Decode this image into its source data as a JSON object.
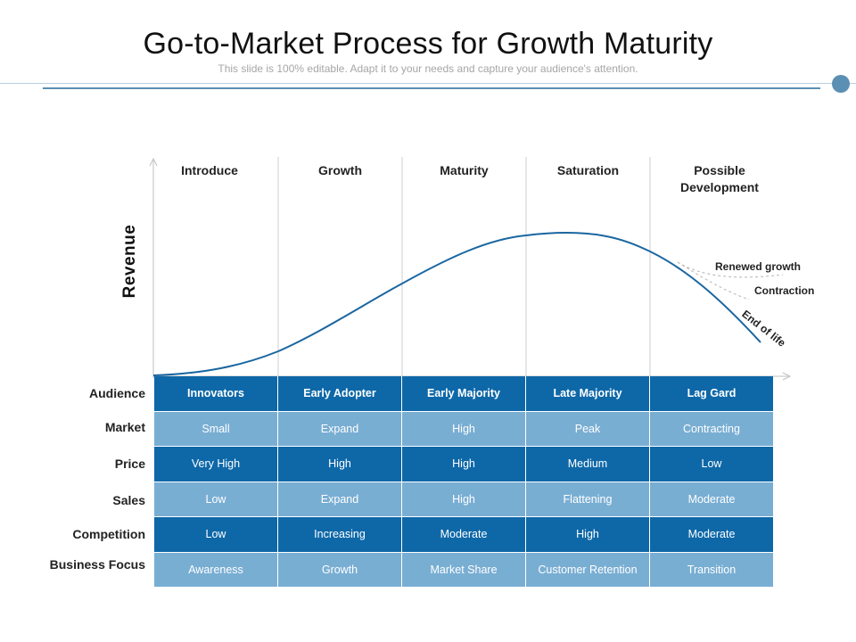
{
  "header": {
    "title": "Go-to-Market Process for Growth Maturity",
    "subtitle": "This slide is 100% editable. Adapt it to your needs and capture your audience's attention."
  },
  "chart": {
    "y_axis_label": "Revenue",
    "stages": [
      "Introduce",
      "Growth",
      "Maturity",
      "Saturation",
      "Possible\nDevelopment"
    ],
    "branches": {
      "renewed": "Renewed  growth",
      "contraction": "Contraction",
      "end_of_life": "End of life"
    }
  },
  "table": {
    "row_labels": [
      "Audience",
      "Market",
      "Price",
      "Sales",
      "Competition",
      "Business Focus"
    ],
    "rows": [
      [
        "Innovators",
        "Early Adopter",
        "Early Majority",
        "Late Majority",
        "Lag Gard"
      ],
      [
        "Small",
        "Expand",
        "High",
        "Peak",
        "Contracting"
      ],
      [
        "Very High",
        "High",
        "High",
        "Medium",
        "Low"
      ],
      [
        "Low",
        "Expand",
        "High",
        "Flattening",
        "Moderate"
      ],
      [
        "Low",
        "Increasing",
        "Moderate",
        "High",
        "Moderate"
      ],
      [
        "Awareness",
        "Growth",
        "Market Share",
        "Customer Retention",
        "Transition"
      ]
    ]
  },
  "colors": {
    "dark_cell": "#0e68a8",
    "light_cell": "#79aed3",
    "curve": "#1a66a0",
    "accent": "#5b8fb3"
  }
}
